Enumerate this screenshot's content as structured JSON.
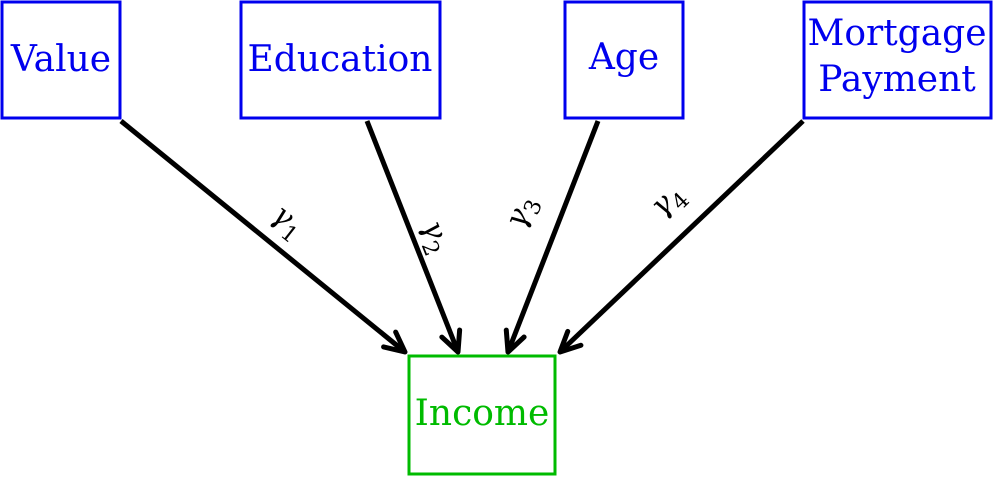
{
  "colors": {
    "predictor": "#0000ee",
    "outcome": "#00bb00",
    "edge": "#000000"
  },
  "nodes": {
    "value": {
      "lines": [
        "Value"
      ]
    },
    "education": {
      "lines": [
        "Education"
      ]
    },
    "age": {
      "lines": [
        "Age"
      ]
    },
    "mortgage": {
      "lines": [
        "Mortgage",
        "Payment"
      ]
    },
    "income": {
      "lines": [
        "Income"
      ]
    }
  },
  "edges": [
    {
      "from": "value",
      "to": "income",
      "symbol": "γ",
      "sub": "1"
    },
    {
      "from": "education",
      "to": "income",
      "symbol": "γ",
      "sub": "2"
    },
    {
      "from": "age",
      "to": "income",
      "symbol": "γ",
      "sub": "3"
    },
    {
      "from": "mortgage",
      "to": "income",
      "symbol": "γ",
      "sub": "4"
    }
  ]
}
